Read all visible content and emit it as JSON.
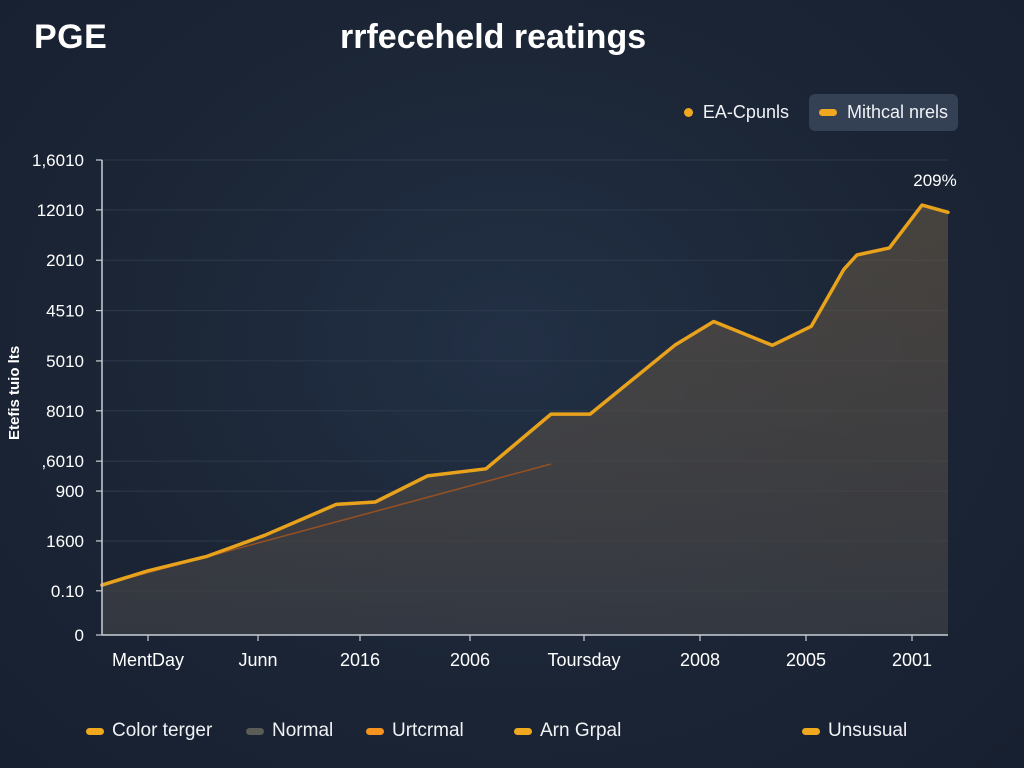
{
  "header": {
    "brand": "PGE",
    "title": "rrfeceheld reatings"
  },
  "top_legend": [
    {
      "label": "EA-Cpunls",
      "color": "#f0a91e",
      "marker": "dot"
    },
    {
      "label": "Mithcal nrels",
      "color": "#f0a91e",
      "marker": "dash"
    }
  ],
  "bottom_legend": [
    {
      "label": "Color terger",
      "color": "#f0a91e"
    },
    {
      "label": "Normal",
      "color": "#5b5b57"
    },
    {
      "label": "Urtcrmal",
      "color": "#f5931e"
    },
    {
      "label": "Arn Grpal",
      "color": "#f0a91e"
    },
    {
      "label": "Unsusual",
      "color": "#f0a91e"
    }
  ],
  "chart_data": {
    "type": "area",
    "title": "rrfeceheld reatings",
    "ylabel": "Etefis tuio lts",
    "xlabel": "",
    "y_ticks": [
      "1,6010",
      "12010",
      "2010",
      "4510",
      "5010",
      "8010",
      ",6010",
      "900",
      "1600",
      "0.10",
      "0"
    ],
    "x_ticks": [
      "MentDay",
      "Junn",
      "2016",
      "2006",
      "Toursday",
      "2008",
      "2005",
      "2001"
    ],
    "ylim": [
      0,
      100
    ],
    "grid": true,
    "series": [
      {
        "name": "Mithcal nrels",
        "color": "#e8a21c",
        "x": [
          0,
          7,
          16,
          25,
          36,
          42,
          50,
          59,
          69,
          75,
          88,
          94,
          103,
          109,
          114,
          116,
          121,
          126,
          130
        ],
        "values": [
          10.5,
          13.5,
          16.5,
          21,
          27.5,
          28,
          33.5,
          35,
          46.5,
          46.5,
          61,
          66,
          61,
          65,
          77,
          80,
          81.5,
          90.5,
          89
        ]
      },
      {
        "name": "EA-Cpunls",
        "color": "#a3541f",
        "x": [
          0,
          69
        ],
        "values": [
          10.5,
          36
        ]
      }
    ],
    "annotation": {
      "text": "209%",
      "x": 128,
      "y": 94.5
    }
  }
}
